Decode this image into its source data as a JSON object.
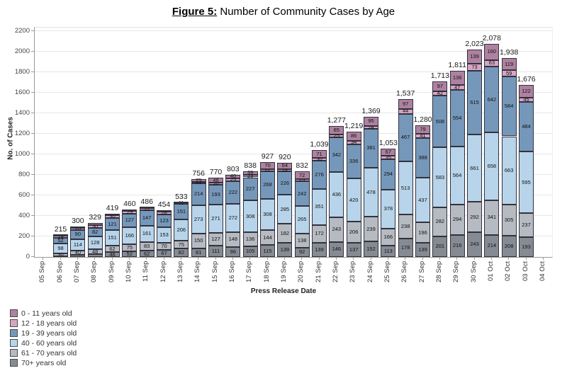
{
  "title": {
    "prefix": "Figure 5:",
    "text": " Number of Community Cases by Age"
  },
  "y_axis": {
    "label": "No. of Cases",
    "ticks": [
      "0",
      "200",
      "400",
      "600",
      "800",
      "1000",
      "1200",
      "1400",
      "1600",
      "1800",
      "2000",
      "2200"
    ],
    "max": 2200
  },
  "x_axis": {
    "label": "Press Release Date"
  },
  "legend": [
    {
      "label": "0 - 11 years old",
      "color": "#ae81a0"
    },
    {
      "label": "12 - 18 years old",
      "color": "#d7a6c2"
    },
    {
      "label": "19 - 39 years old",
      "color": "#7598ba"
    },
    {
      "label": "40 - 60 years old",
      "color": "#b7d4ea"
    },
    {
      "label": "61 - 70 years old",
      "color": "#b6bac1"
    },
    {
      "label": "70+ years old",
      "color": "#868b93"
    }
  ],
  "chart_data": {
    "type": "bar",
    "stacked": true,
    "title": "Figure 5: Number of Community Cases by Age",
    "xlabel": "Press Release Date",
    "ylabel": "No. of Cases",
    "ylim": [
      0,
      2200
    ],
    "grid": true,
    "legend_position": "bottom-left",
    "categories": [
      "05 Sep",
      "06 Sep",
      "07 Sep",
      "08 Sep",
      "09 Sep",
      "10 Sep",
      "11 Sep",
      "12 Sep",
      "13 Sep",
      "14 Sep",
      "15 Sep",
      "16 Sep",
      "17 Sep",
      "18 Sep",
      "19 Sep",
      "20 Sep",
      "21 Sep",
      "22 Sep",
      "23 Sep",
      "24 Sep",
      "25 Sep",
      "26 Sep",
      "27 Sep",
      "28 Sep",
      "29 Sep",
      "30 Sep",
      "01 Oct",
      "02 Oct",
      "03 Oct",
      "04 Oct"
    ],
    "totals": [
      "",
      "215",
      "300",
      "329",
      "419",
      "460",
      "486",
      "454",
      "533",
      "756",
      "770",
      "803",
      "838",
      "927",
      "920",
      "832",
      "1,039",
      "1,277",
      "1,219",
      "1,369",
      "1,053",
      "1,537",
      "1,280",
      "1,713",
      "1,811",
      "2,023",
      "2,078",
      "1,938",
      "1,676",
      ""
    ],
    "series": [
      {
        "name": "70+ years old",
        "color": "#868b93",
        "values": [
          0,
          6,
          20,
          25,
          46,
          52,
          62,
          67,
          82,
          81,
          111,
          96,
          105,
          115,
          139,
          92,
          139,
          146,
          137,
          152,
          113,
          178,
          139,
          201,
          216,
          243,
          214,
          208,
          193,
          0
        ],
        "labels": [
          "",
          "",
          "",
          "",
          "46",
          "52",
          "62",
          "67",
          "82",
          "81",
          "111",
          "96",
          "105",
          "115",
          "139",
          "92",
          "139",
          "146",
          "137",
          "152",
          "113",
          "178",
          "139",
          "201",
          "216",
          "243",
          "214",
          "208",
          "193",
          ""
        ]
      },
      {
        "name": "61 - 70 years old",
        "color": "#b6bac1",
        "values": [
          0,
          30,
          40,
          48,
          62,
          75,
          83,
          70,
          75,
          150,
          127,
          148,
          136,
          144,
          182,
          138,
          172,
          243,
          206,
          239,
          166,
          238,
          196,
          282,
          294,
          292,
          341,
          305,
          237,
          0
        ],
        "labels": [
          "",
          "30",
          "40",
          "48",
          "62",
          "75",
          "83",
          "70",
          "75",
          "150",
          "127",
          "148",
          "136",
          "144",
          "182",
          "138",
          "172",
          "243",
          "206",
          "239",
          "166",
          "238",
          "196",
          "282",
          "294",
          "292",
          "341",
          "305",
          "237",
          ""
        ]
      },
      {
        "name": "40 - 60 years old",
        "color": "#b7d4ea",
        "values": [
          0,
          98,
          114,
          128,
          151,
          166,
          161,
          153,
          206,
          273,
          271,
          272,
          308,
          308,
          285,
          265,
          351,
          436,
          420,
          478,
          378,
          513,
          437,
          583,
          564,
          661,
          658,
          663,
          595,
          0
        ],
        "labels": [
          "",
          "98",
          "114",
          "128",
          "151",
          "166",
          "161",
          "153",
          "206",
          "273",
          "271",
          "272",
          "308",
          "308",
          "285",
          "265",
          "351",
          "436",
          "420",
          "478",
          "378",
          "513",
          "437",
          "583",
          "564",
          "661",
          "658",
          "663",
          "595",
          ""
        ]
      },
      {
        "name": "19 - 39 years old",
        "color": "#7598ba",
        "values": [
          0,
          52,
          90,
          82,
          121,
          127,
          147,
          123,
          151,
          214,
          193,
          222,
          227,
          268,
          226,
          242,
          276,
          342,
          336,
          381,
          294,
          467,
          388,
          508,
          554,
          615,
          642,
          584,
          484,
          0
        ],
        "labels": [
          "",
          "52",
          "90",
          "82",
          "121",
          "127",
          "147",
          "123",
          "151",
          "214",
          "193",
          "222",
          "227",
          "268",
          "226",
          "242",
          "276",
          "342",
          "336",
          "381",
          "294",
          "467",
          "388",
          "508",
          "554",
          "615",
          "642",
          "584",
          "484",
          ""
        ]
      },
      {
        "name": "12 - 18 years old",
        "color": "#d7a6c2",
        "values": [
          0,
          19,
          20,
          30,
          30,
          29,
          22,
          28,
          11,
          13,
          20,
          25,
          23,
          22,
          24,
          23,
          30,
          25,
          34,
          24,
          35,
          44,
          41,
          42,
          47,
          73,
          63,
          59,
          45,
          0
        ],
        "labels": [
          "",
          "19",
          "20",
          "30",
          "30",
          "29",
          "22",
          "28",
          "11",
          "13",
          "20",
          "25",
          "23",
          "22",
          "24",
          "23",
          "30",
          "25",
          "34",
          "24",
          "35",
          "44",
          "41",
          "42",
          "47",
          "73",
          "63",
          "59",
          "45",
          ""
        ]
      },
      {
        "name": "0 - 11 years old",
        "color": "#ae81a0",
        "values": [
          0,
          10,
          16,
          16,
          9,
          11,
          11,
          13,
          8,
          25,
          48,
          40,
          39,
          70,
          64,
          72,
          71,
          85,
          86,
          95,
          67,
          97,
          79,
          97,
          136,
          139,
          160,
          119,
          122,
          0
        ],
        "labels": [
          "",
          "",
          "",
          "",
          "",
          "",
          "",
          "",
          "",
          "25",
          "48",
          "40",
          "39",
          "70",
          "64",
          "72",
          "71",
          "85",
          "86",
          "95",
          "67",
          "97",
          "79",
          "97",
          "136",
          "139",
          "160",
          "119",
          "122",
          ""
        ]
      }
    ]
  }
}
